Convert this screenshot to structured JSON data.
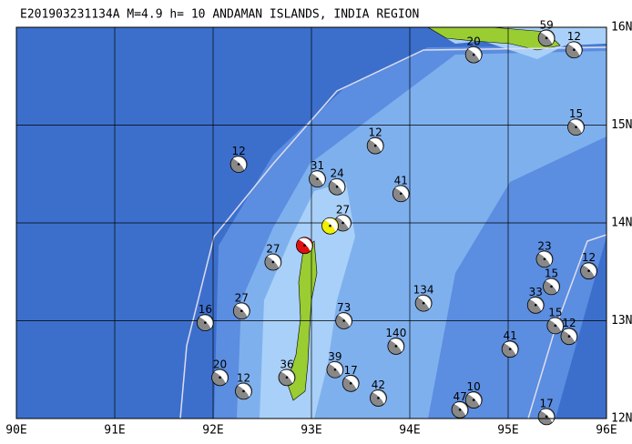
{
  "map": {
    "title": "E201903231134A M=4.9 h= 10 ANDAMAN ISLANDS, INDIA REGION",
    "xlim": [
      90,
      96
    ],
    "ylim": [
      12,
      16
    ],
    "xticks": [
      {
        "value": 90,
        "label": "90E"
      },
      {
        "value": 91,
        "label": "91E"
      },
      {
        "value": 92,
        "label": "92E"
      },
      {
        "value": 93,
        "label": "93E"
      },
      {
        "value": 94,
        "label": "94E"
      },
      {
        "value": 95,
        "label": "95E"
      },
      {
        "value": 96,
        "label": "96E"
      }
    ],
    "yticks": [
      {
        "value": 12,
        "label": "12N"
      },
      {
        "value": 13,
        "label": "13N"
      },
      {
        "value": 14,
        "label": "14N"
      },
      {
        "value": 15,
        "label": "15N"
      },
      {
        "value": 16,
        "label": "16N"
      }
    ],
    "events": [
      {
        "label": "59",
        "lon": 95.39,
        "lat": 15.89
      },
      {
        "label": "12",
        "lon": 95.67,
        "lat": 15.77
      },
      {
        "label": "20",
        "lon": 94.65,
        "lat": 15.72
      },
      {
        "label": "15",
        "lon": 95.69,
        "lat": 14.98
      },
      {
        "label": "12",
        "lon": 93.65,
        "lat": 14.79
      },
      {
        "label": "12",
        "lon": 92.26,
        "lat": 14.6
      },
      {
        "label": "31",
        "lon": 93.06,
        "lat": 14.45
      },
      {
        "label": "24",
        "lon": 93.26,
        "lat": 14.37
      },
      {
        "label": "41",
        "lon": 93.91,
        "lat": 14.3
      },
      {
        "label": "27",
        "lon": 93.32,
        "lat": 14.0
      },
      {
        "label": "23",
        "lon": 95.37,
        "lat": 13.63
      },
      {
        "label": "12",
        "lon": 95.82,
        "lat": 13.51
      },
      {
        "label": "15",
        "lon": 95.44,
        "lat": 13.35
      },
      {
        "label": "33",
        "lon": 95.28,
        "lat": 13.16
      },
      {
        "label": "134",
        "lon": 94.14,
        "lat": 13.18
      },
      {
        "label": "73",
        "lon": 93.33,
        "lat": 13.0
      },
      {
        "label": "27",
        "lon": 92.61,
        "lat": 13.6
      },
      {
        "label": "27",
        "lon": 92.29,
        "lat": 13.1
      },
      {
        "label": "16",
        "lon": 91.92,
        "lat": 12.98
      },
      {
        "label": "140",
        "lon": 93.86,
        "lat": 12.74
      },
      {
        "label": "41",
        "lon": 95.02,
        "lat": 12.71
      },
      {
        "label": "15",
        "lon": 95.48,
        "lat": 12.95
      },
      {
        "label": "12",
        "lon": 95.62,
        "lat": 12.84
      },
      {
        "label": "39",
        "lon": 93.24,
        "lat": 12.5
      },
      {
        "label": "17",
        "lon": 93.4,
        "lat": 12.36
      },
      {
        "label": "36",
        "lon": 92.75,
        "lat": 12.42
      },
      {
        "label": "20",
        "lon": 92.07,
        "lat": 12.42
      },
      {
        "label": "12",
        "lon": 92.31,
        "lat": 12.28
      },
      {
        "label": "42",
        "lon": 93.68,
        "lat": 12.21
      },
      {
        "label": "47",
        "lon": 94.51,
        "lat": 12.09
      },
      {
        "label": "10",
        "lon": 94.65,
        "lat": 12.19
      },
      {
        "label": "17",
        "lon": 95.39,
        "lat": 12.02
      },
      {
        "lon": 92.93,
        "lat": 13.77,
        "color": "#e01010"
      },
      {
        "lon": 93.19,
        "lat": 13.97,
        "color": "#f0f000"
      }
    ]
  }
}
